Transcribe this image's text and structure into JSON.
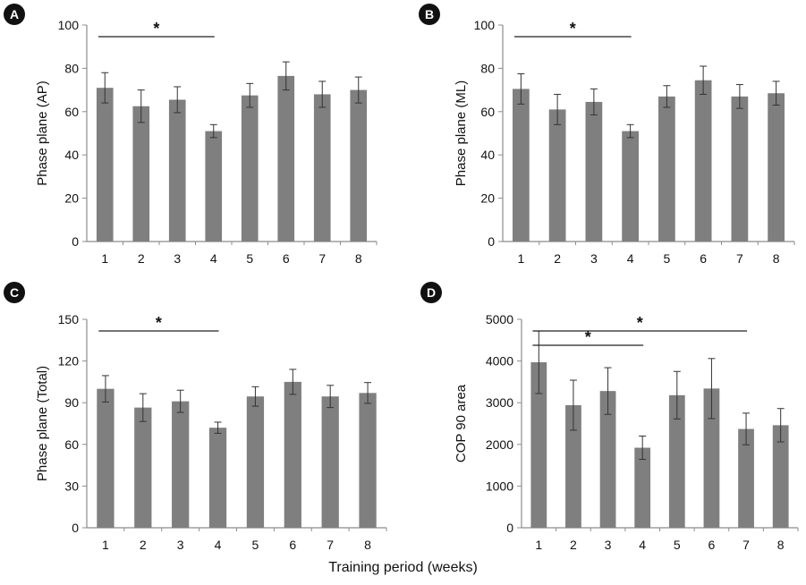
{
  "figure": {
    "xlabel": "Training period (weeks)"
  },
  "colors": {
    "bar": "#7f7f7f",
    "axis": "#8c8c8c",
    "text": "#111111",
    "badge": "#111111"
  },
  "chart_data": [
    {
      "panel": "A",
      "type": "bar",
      "categories": [
        "1",
        "2",
        "3",
        "4",
        "5",
        "6",
        "7",
        "8"
      ],
      "values": [
        71,
        62.5,
        65.5,
        51,
        67.5,
        76.5,
        68,
        70
      ],
      "errors": [
        7,
        7.5,
        6,
        3,
        5.5,
        6.5,
        6,
        6
      ],
      "ylabel": "Phase plane (AP)",
      "ylim": [
        0,
        100
      ],
      "yticks": [
        0,
        20,
        40,
        60,
        80,
        100
      ],
      "significance": [
        {
          "from": "1",
          "to": "4",
          "label": "*"
        }
      ]
    },
    {
      "panel": "B",
      "type": "bar",
      "categories": [
        "1",
        "2",
        "3",
        "4",
        "5",
        "6",
        "7",
        "8"
      ],
      "values": [
        70.5,
        61,
        64.5,
        51,
        67,
        74.5,
        67,
        68.5
      ],
      "errors": [
        7,
        7,
        6,
        3,
        5,
        6.5,
        5.5,
        5.5
      ],
      "ylabel": "Phase plane (ML)",
      "ylim": [
        0,
        100
      ],
      "yticks": [
        0,
        20,
        40,
        60,
        80,
        100
      ],
      "significance": [
        {
          "from": "1",
          "to": "4",
          "label": "*"
        }
      ]
    },
    {
      "panel": "C",
      "type": "bar",
      "categories": [
        "1",
        "2",
        "3",
        "4",
        "5",
        "6",
        "7",
        "8"
      ],
      "values": [
        100,
        86.5,
        91,
        72,
        94.5,
        105,
        94.5,
        97
      ],
      "errors": [
        9.5,
        10,
        8,
        4,
        7,
        9,
        8,
        7.5
      ],
      "ylabel": "Phase  plane (Total)",
      "ylim": [
        0,
        150
      ],
      "yticks": [
        0,
        30,
        60,
        90,
        120,
        150
      ],
      "significance": [
        {
          "from": "1",
          "to": "4",
          "label": "*"
        }
      ]
    },
    {
      "panel": "D",
      "type": "bar",
      "categories": [
        "1",
        "2",
        "3",
        "4",
        "5",
        "6",
        "7",
        "8"
      ],
      "values": [
        3970,
        2940,
        3280,
        1920,
        3180,
        3340,
        2370,
        2460
      ],
      "errors": [
        750,
        600,
        560,
        280,
        570,
        720,
        380,
        400
      ],
      "ylabel": "COP 90 area",
      "ylim": [
        0,
        5000
      ],
      "yticks": [
        0,
        1000,
        2000,
        3000,
        4000,
        5000
      ],
      "significance": [
        {
          "from": "1",
          "to": "7",
          "label": "*"
        },
        {
          "from": "1",
          "to": "4",
          "label": "*"
        }
      ]
    }
  ]
}
